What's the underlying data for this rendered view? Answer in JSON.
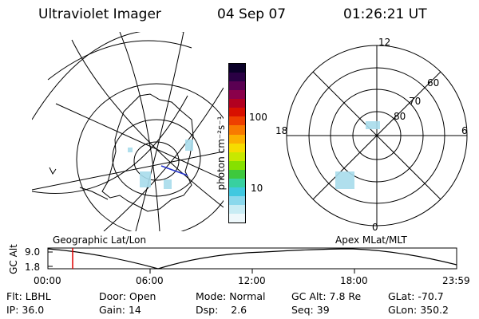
{
  "header": {
    "instrument": "Ultraviolet Imager",
    "date": "04 Sep 07",
    "time": "01:26:21 UT"
  },
  "colorbar": {
    "unit_label": "photon cm⁻²s⁻¹",
    "ticks": [
      "100",
      "10"
    ],
    "colors": [
      "#0a0028",
      "#2a0044",
      "#5a0052",
      "#8a004a",
      "#b20020",
      "#d81000",
      "#ee4000",
      "#f87a00",
      "#fcb000",
      "#f6dc00",
      "#c8e800",
      "#86e000",
      "#3ec83e",
      "#38d0a0",
      "#40c8e0",
      "#8ad8ec",
      "#c8ecf4",
      "#eef8fb"
    ]
  },
  "geo_panel": {
    "label": "Geographic Lat/Lon"
  },
  "polar_panel": {
    "label": "Apex  MLat/MLT",
    "mlt_labels": {
      "top": "12",
      "left": "18",
      "right": "6",
      "bottom": "0"
    },
    "lat_labels": [
      "80",
      "70",
      "60"
    ]
  },
  "altitude_strip": {
    "ylabel": "GC Alt",
    "y_ticks": [
      "9.0",
      "1.8"
    ],
    "x_ticks": [
      "00:00",
      "06:00",
      "12:00",
      "18:00",
      "23:59"
    ]
  },
  "info": {
    "row1": [
      {
        "label": "Flt:",
        "value": "LBHL"
      },
      {
        "label": "Door:",
        "value": "Open"
      },
      {
        "label": "Mode:",
        "value": "Normal"
      },
      {
        "label": "GC Alt:",
        "value": "7.8 Re"
      },
      {
        "label": "GLat:",
        "value": "-70.7"
      }
    ],
    "row2": [
      {
        "label": "IP:",
        "value": "36.0"
      },
      {
        "label": "Gain:",
        "value": "14"
      },
      {
        "label": "Dsp:",
        "value": "2.6"
      },
      {
        "label": "Seq:",
        "value": "39"
      },
      {
        "label": "GLon:",
        "value": "350.2"
      }
    ]
  },
  "colors": {
    "marker": "#e00000",
    "track_segment": "#2233cc",
    "aurora": "#a8dcec"
  }
}
